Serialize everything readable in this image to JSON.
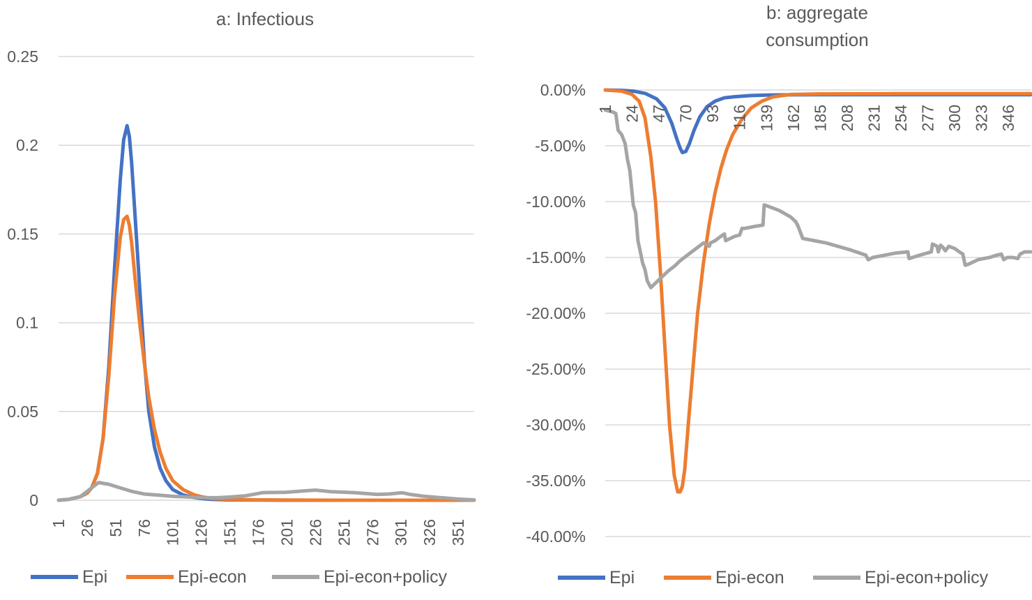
{
  "chart_data": [
    {
      "type": "line",
      "title": "a: Infectious",
      "xlabel": "",
      "ylabel": "",
      "x_range": [
        1,
        365
      ],
      "ylim": [
        0,
        0.25
      ],
      "y_ticks": [
        "0.25",
        "0.2",
        "0.15",
        "0.1",
        "0.05",
        "0"
      ],
      "y_tick_values": [
        0.25,
        0.2,
        0.15,
        0.1,
        0.05,
        0
      ],
      "x_ticks": [
        "1",
        "26",
        "51",
        "76",
        "101",
        "126",
        "151",
        "176",
        "201",
        "226",
        "251",
        "276",
        "301",
        "326",
        "351"
      ],
      "grid": true,
      "legend_position": "bottom",
      "colors": {
        "Epi": "#4472C4",
        "Epi-econ": "#ED7D31",
        "Epi-econ+policy": "#A5A5A5"
      },
      "series": [
        {
          "name": "Epi",
          "x": [
            1,
            10,
            20,
            26,
            30,
            35,
            40,
            45,
            50,
            55,
            58,
            61,
            63,
            65,
            67,
            70,
            73,
            76,
            80,
            85,
            90,
            95,
            101,
            110,
            120,
            126,
            135,
            150,
            175,
            200,
            250,
            300,
            365
          ],
          "values": [
            0,
            0.0005,
            0.002,
            0.004,
            0.007,
            0.015,
            0.035,
            0.075,
            0.13,
            0.18,
            0.203,
            0.211,
            0.205,
            0.19,
            0.17,
            0.14,
            0.11,
            0.08,
            0.05,
            0.03,
            0.018,
            0.011,
            0.006,
            0.003,
            0.0015,
            0.001,
            0.0005,
            0.0002,
            0.0001,
            0,
            0,
            0,
            0
          ]
        },
        {
          "name": "Epi-econ",
          "x": [
            1,
            10,
            20,
            26,
            30,
            35,
            40,
            45,
            50,
            55,
            58,
            61,
            63,
            65,
            68,
            72,
            76,
            80,
            85,
            90,
            95,
            101,
            110,
            120,
            126,
            135,
            150,
            175,
            200,
            250,
            300,
            365
          ],
          "values": [
            0,
            0.0005,
            0.002,
            0.004,
            0.007,
            0.015,
            0.035,
            0.07,
            0.115,
            0.148,
            0.158,
            0.16,
            0.155,
            0.145,
            0.125,
            0.1,
            0.078,
            0.058,
            0.04,
            0.027,
            0.018,
            0.011,
            0.006,
            0.003,
            0.002,
            0.001,
            0.0005,
            0.0002,
            0.0001,
            0,
            0,
            0
          ]
        },
        {
          "name": "Epi-econ+policy",
          "x": [
            1,
            10,
            20,
            26,
            30,
            36,
            45,
            55,
            65,
            76,
            90,
            101,
            115,
            126,
            140,
            151,
            165,
            180,
            200,
            215,
            226,
            240,
            260,
            280,
            290,
            302,
            310,
            320,
            335,
            350,
            365
          ],
          "values": [
            0,
            0.0005,
            0.002,
            0.005,
            0.007,
            0.01,
            0.009,
            0.007,
            0.005,
            0.0035,
            0.0028,
            0.0022,
            0.0018,
            0.0014,
            0.0014,
            0.0018,
            0.0025,
            0.0043,
            0.0045,
            0.0052,
            0.0057,
            0.0048,
            0.0043,
            0.0033,
            0.0035,
            0.0042,
            0.0032,
            0.0023,
            0.0015,
            0.0007,
            0.0002
          ]
        }
      ]
    },
    {
      "type": "line",
      "title_lines": [
        "b: aggregate",
        "consumption"
      ],
      "xlabel": "",
      "ylabel": "",
      "x_range": [
        1,
        365
      ],
      "ylim": [
        -0.4,
        0
      ],
      "y_ticks": [
        "0.00%",
        "-5.00%",
        "-10.00%",
        "-15.00%",
        "-20.00%",
        "-25.00%",
        "-30.00%",
        "-35.00%",
        "-40.00%"
      ],
      "y_tick_values": [
        0,
        -0.05,
        -0.1,
        -0.15,
        -0.2,
        -0.25,
        -0.3,
        -0.35,
        -0.4
      ],
      "x_ticks": [
        "1",
        "24",
        "47",
        "70",
        "93",
        "116",
        "139",
        "162",
        "185",
        "208",
        "231",
        "254",
        "277",
        "300",
        "323",
        "346"
      ],
      "grid": true,
      "legend_position": "bottom",
      "colors": {
        "Epi": "#4472C4",
        "Epi-econ": "#ED7D31",
        "Epi-econ+policy": "#A5A5A5"
      },
      "series": [
        {
          "name": "Epi",
          "x": [
            1,
            15,
            25,
            35,
            45,
            52,
            58,
            62,
            65,
            67,
            70,
            73,
            77,
            82,
            88,
            95,
            103,
            112,
            125,
            140,
            160,
            185,
            250,
            365
          ],
          "values": [
            0,
            -0.0003,
            -0.001,
            -0.003,
            -0.008,
            -0.016,
            -0.03,
            -0.043,
            -0.052,
            -0.056,
            -0.055,
            -0.048,
            -0.036,
            -0.024,
            -0.015,
            -0.01,
            -0.007,
            -0.006,
            -0.005,
            -0.0045,
            -0.0043,
            -0.0042,
            -0.0042,
            -0.0042
          ]
        },
        {
          "name": "Epi-econ",
          "x": [
            1,
            15,
            24,
            30,
            35,
            40,
            44,
            48,
            52,
            56,
            60,
            63,
            65,
            67,
            69,
            72,
            76,
            80,
            85,
            90,
            95,
            100,
            105,
            110,
            118,
            126,
            135,
            145,
            160,
            185,
            250,
            365
          ],
          "values": [
            0,
            -0.001,
            -0.004,
            -0.01,
            -0.025,
            -0.06,
            -0.1,
            -0.16,
            -0.23,
            -0.3,
            -0.345,
            -0.36,
            -0.36,
            -0.355,
            -0.34,
            -0.3,
            -0.25,
            -0.2,
            -0.155,
            -0.12,
            -0.092,
            -0.07,
            -0.053,
            -0.04,
            -0.026,
            -0.016,
            -0.01,
            -0.006,
            -0.004,
            -0.0035,
            -0.0033,
            -0.0033
          ]
        },
        {
          "name": "Epi-econ+policy",
          "x": [
            1,
            5,
            8,
            10,
            12,
            15,
            18,
            20,
            22,
            25,
            27,
            29,
            31,
            33,
            35,
            37,
            38,
            40,
            42,
            45,
            50,
            55,
            60,
            65,
            70,
            75,
            80,
            85,
            90,
            91,
            95,
            100,
            103,
            104,
            108,
            112,
            116,
            118,
            120,
            125,
            130,
            136,
            137,
            140,
            145,
            150,
            155,
            160,
            164,
            166,
            170,
            180,
            190,
            200,
            210,
            224,
            226,
            230,
            240,
            250,
            260,
            261,
            270,
            280,
            281,
            285,
            286,
            288,
            290,
            292,
            295,
            300,
            304,
            307,
            309,
            312,
            316,
            320,
            325,
            330,
            336,
            340,
            342,
            345,
            350,
            354,
            356,
            360,
            365
          ],
          "values": [
            -0.018,
            -0.019,
            -0.02,
            -0.021,
            -0.036,
            -0.04,
            -0.048,
            -0.062,
            -0.072,
            -0.103,
            -0.11,
            -0.135,
            -0.145,
            -0.155,
            -0.161,
            -0.171,
            -0.173,
            -0.177,
            -0.175,
            -0.172,
            -0.167,
            -0.162,
            -0.158,
            -0.153,
            -0.149,
            -0.145,
            -0.141,
            -0.137,
            -0.14,
            -0.137,
            -0.135,
            -0.131,
            -0.129,
            -0.135,
            -0.133,
            -0.131,
            -0.13,
            -0.124,
            -0.124,
            -0.123,
            -0.122,
            -0.121,
            -0.103,
            -0.104,
            -0.106,
            -0.108,
            -0.111,
            -0.114,
            -0.118,
            -0.122,
            -0.133,
            -0.135,
            -0.137,
            -0.14,
            -0.143,
            -0.148,
            -0.152,
            -0.15,
            -0.148,
            -0.146,
            -0.145,
            -0.151,
            -0.148,
            -0.145,
            -0.138,
            -0.14,
            -0.145,
            -0.139,
            -0.141,
            -0.144,
            -0.14,
            -0.142,
            -0.145,
            -0.147,
            -0.157,
            -0.156,
            -0.154,
            -0.152,
            -0.151,
            -0.15,
            -0.148,
            -0.147,
            -0.152,
            -0.15,
            -0.15,
            -0.151,
            -0.147,
            -0.145,
            -0.145
          ]
        }
      ]
    }
  ]
}
